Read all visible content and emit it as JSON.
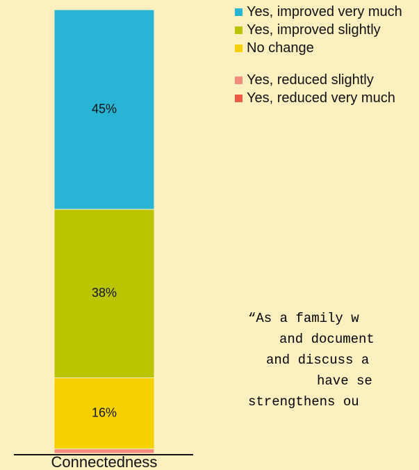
{
  "chart_data": {
    "type": "stacked-bar",
    "categories": [
      "Connectedness"
    ],
    "series": [
      {
        "name": "Yes, improved very much",
        "color": "#29b3d4",
        "values": [
          45
        ],
        "value_labels": [
          "45%"
        ]
      },
      {
        "name": "Yes, improved slightly",
        "color": "#bbc400",
        "values": [
          38
        ],
        "value_labels": [
          "38%"
        ]
      },
      {
        "name": "No change",
        "color": "#f6d100",
        "values": [
          16
        ],
        "value_labels": [
          "16%"
        ]
      },
      {
        "name": "Yes, reduced slightly",
        "color": "#f28b7d",
        "values": [
          1
        ],
        "value_labels": [
          null
        ]
      },
      {
        "name": "Yes, reduced very much",
        "color": "#ee5a45",
        "values": [
          0
        ],
        "value_labels": [
          null
        ]
      }
    ],
    "ylim": [
      0,
      100
    ],
    "quote": [
      "“As a family w",
      "and document",
      "and discuss a",
      "have se",
      "strengthens ou"
    ]
  }
}
